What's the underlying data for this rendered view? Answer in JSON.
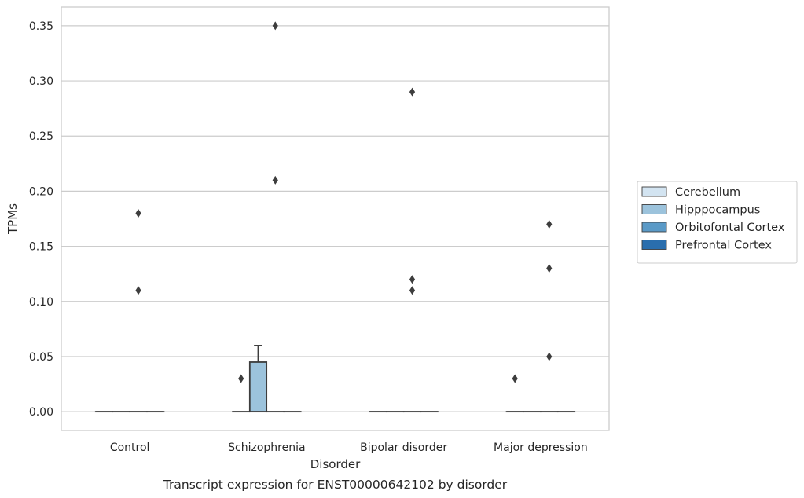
{
  "chart_data": {
    "type": "box",
    "caption": "Transcript expression for ENST00000642102 by disorder",
    "xlabel": "Disorder",
    "ylabel": "TPMs",
    "ylim": [
      -0.017,
      0.367
    ],
    "yticks": [
      0.0,
      0.05,
      0.1,
      0.15,
      0.2,
      0.25,
      0.3,
      0.35
    ],
    "ytick_labels": [
      "0.00",
      "0.05",
      "0.10",
      "0.15",
      "0.20",
      "0.25",
      "0.30",
      "0.35"
    ],
    "grid": "horizontal",
    "legend_position": "right",
    "categories": [
      "Control",
      "Schizophrenia",
      "Bipolar disorder",
      "Major depression"
    ],
    "series": [
      {
        "name": "Cerebellum",
        "color": "#d3e4f1",
        "boxes": [
          {
            "q1": 0,
            "median": 0,
            "q3": 0,
            "whisker_low": 0,
            "whisker_high": 0,
            "outliers": []
          },
          {
            "q1": 0,
            "median": 0,
            "q3": 0,
            "whisker_low": 0,
            "whisker_high": 0,
            "outliers": []
          },
          {
            "q1": 0,
            "median": 0,
            "q3": 0,
            "whisker_low": 0,
            "whisker_high": 0,
            "outliers": []
          },
          {
            "q1": 0,
            "median": 0,
            "q3": 0,
            "whisker_low": 0,
            "whisker_high": 0,
            "outliers": []
          }
        ]
      },
      {
        "name": "Hipppocampus",
        "color": "#9cc3dc",
        "boxes": [
          {
            "q1": 0,
            "median": 0,
            "q3": 0,
            "whisker_low": 0,
            "whisker_high": 0,
            "outliers": []
          },
          {
            "q1": 0,
            "median": 0,
            "q3": 0.045,
            "whisker_low": 0,
            "whisker_high": 0.06,
            "outliers": []
          },
          {
            "q1": 0,
            "median": 0,
            "q3": 0,
            "whisker_low": 0,
            "whisker_high": 0,
            "outliers": []
          },
          {
            "q1": 0,
            "median": 0,
            "q3": 0,
            "whisker_low": 0,
            "whisker_high": 0,
            "outliers": []
          }
        ]
      },
      {
        "name": "Orbitofontal Cortex",
        "color": "#5a9ac7",
        "boxes": [
          {
            "q1": 0,
            "median": 0,
            "q3": 0,
            "whisker_low": 0,
            "whisker_high": 0,
            "outliers": [
              0.18,
              0.11
            ]
          },
          {
            "q1": 0,
            "median": 0,
            "q3": 0,
            "whisker_low": 0,
            "whisker_high": 0,
            "outliers": [
              0.35,
              0.21
            ]
          },
          {
            "q1": 0,
            "median": 0,
            "q3": 0,
            "whisker_low": 0,
            "whisker_high": 0,
            "outliers": [
              0.29,
              0.12,
              0.11
            ]
          },
          {
            "q1": 0,
            "median": 0,
            "q3": 0,
            "whisker_low": 0,
            "whisker_high": 0,
            "outliers": [
              0.17,
              0.13,
              0.05
            ]
          }
        ]
      },
      {
        "name": "Prefrontal Cortex",
        "color": "#2a6ead",
        "boxes": [
          {
            "q1": 0,
            "median": 0,
            "q3": 0,
            "whisker_low": 0,
            "whisker_high": 0,
            "outliers": []
          },
          {
            "q1": 0,
            "median": 0,
            "q3": 0,
            "whisker_low": 0,
            "whisker_high": 0,
            "outliers": []
          },
          {
            "q1": 0,
            "median": 0,
            "q3": 0,
            "whisker_low": 0,
            "whisker_high": 0,
            "outliers": []
          },
          {
            "q1": 0,
            "median": 0,
            "q3": 0,
            "whisker_low": 0,
            "whisker_high": 0,
            "outliers": []
          }
        ]
      }
    ],
    "extra_outliers": [
      {
        "category_index": 1,
        "series_index": 0,
        "value": 0.03
      },
      {
        "category_index": 3,
        "series_index": 0,
        "value": 0.03
      }
    ]
  }
}
